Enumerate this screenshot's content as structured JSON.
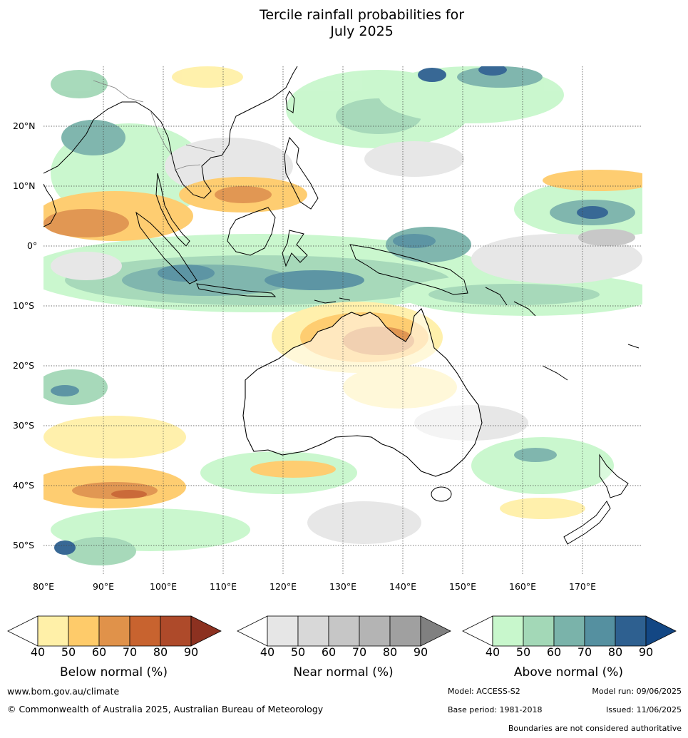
{
  "title_line1": "Tercile rainfall probabilities for",
  "title_line2": "July 2025",
  "lat_labels": [
    "20°N",
    "10°N",
    "0°",
    "10°S",
    "20°S",
    "30°S",
    "40°S",
    "50°S"
  ],
  "lon_labels": [
    "80°E",
    "90°E",
    "100°E",
    "110°E",
    "120°E",
    "130°E",
    "140°E",
    "150°E",
    "160°E",
    "170°E"
  ],
  "colorbars": [
    {
      "title": "Below normal (%)",
      "ticks": [
        "40",
        "50",
        "60",
        "70",
        "80",
        "90"
      ],
      "colors": [
        "#fff0a8",
        "#fecb6a",
        "#e0924a",
        "#c8632f",
        "#ae4a2a",
        "#8c3120"
      ]
    },
    {
      "title": "Near normal (%)",
      "ticks": [
        "40",
        "50",
        "60",
        "70",
        "80",
        "90"
      ],
      "colors": [
        "#e6e6e6",
        "#d8d8d8",
        "#c6c6c6",
        "#b4b4b4",
        "#a0a0a0",
        "#808080"
      ]
    },
    {
      "title": "Above normal (%)",
      "ticks": [
        "40",
        "50",
        "60",
        "70",
        "80",
        "90"
      ],
      "colors": [
        "#c8f7cc",
        "#a3d8b7",
        "#7ab3aa",
        "#5590a0",
        "#2e6090",
        "#134784"
      ]
    }
  ],
  "footer": {
    "website": "www.bom.gov.au/climate",
    "copyright": "© Commonwealth of Australia 2025, Australian Bureau of Meteorology",
    "model": "Model: ACCESS-S2",
    "model_run": "Model run: 09/06/2025",
    "base_period": "Base period: 1981-2018",
    "issued": "Issued: 11/06/2025",
    "disclaimer": "Boundaries are not considered authoritative"
  }
}
